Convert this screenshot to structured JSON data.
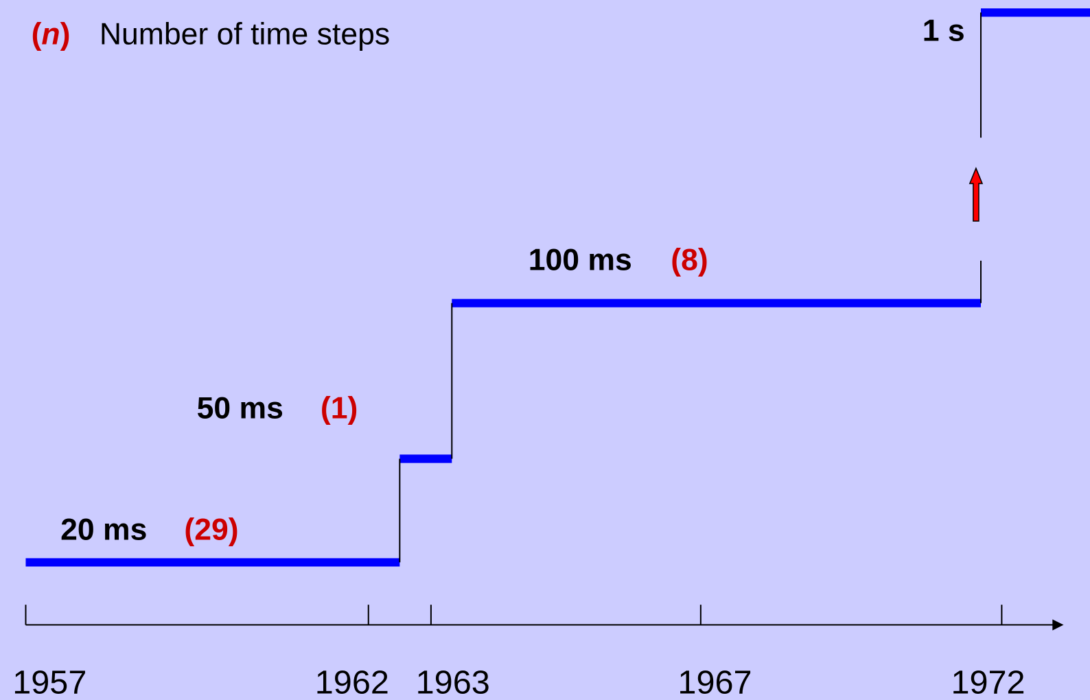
{
  "legend": {
    "open": "(",
    "n": "n",
    "close": ")",
    "text": "Number of time steps"
  },
  "steps": [
    {
      "label": "20 ms",
      "count": "(29)"
    },
    {
      "label": "50 ms",
      "count": "(1)"
    },
    {
      "label": "100 ms",
      "count": "(8)"
    },
    {
      "label": "1 s"
    }
  ],
  "axis": {
    "ticks": [
      "1957",
      "1962",
      "1963",
      "1967",
      "1972"
    ]
  }
}
